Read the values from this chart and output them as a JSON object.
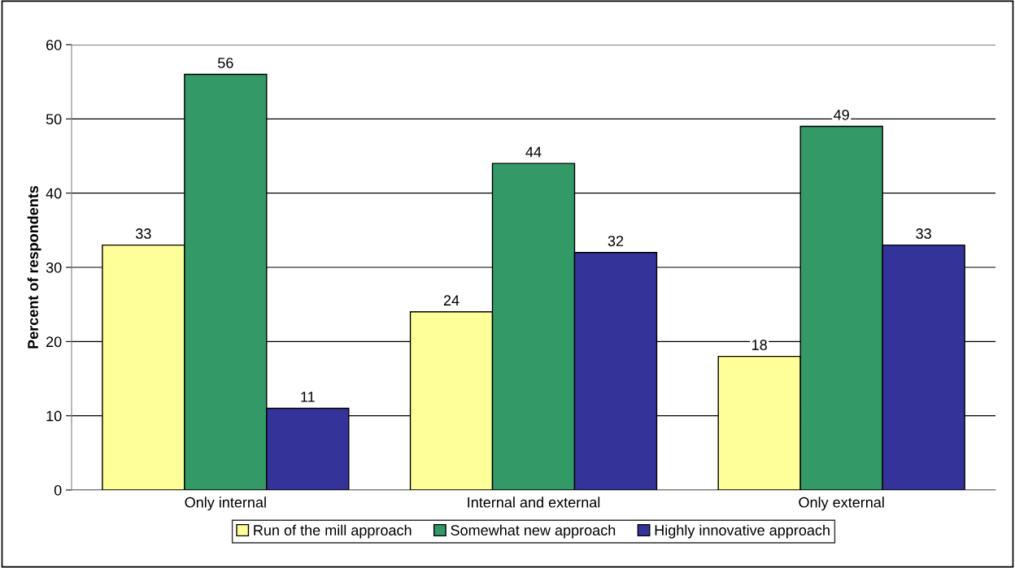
{
  "chart_data": {
    "type": "bar",
    "ylabel": "Percent of respondents",
    "categories": [
      "Only internal",
      "Internal and external",
      "Only external"
    ],
    "series": [
      {
        "name": "Run of the mill approach",
        "color": "#ffff99",
        "values": [
          33,
          24,
          18
        ]
      },
      {
        "name": "Somewhat new approach",
        "color": "#339966",
        "values": [
          56,
          44,
          49
        ]
      },
      {
        "name": "Highly innovative approach",
        "color": "#333399",
        "values": [
          11,
          32,
          33
        ]
      }
    ],
    "ylim": [
      0,
      60
    ],
    "yticks": [
      0,
      10,
      20,
      30,
      40,
      50,
      60
    ],
    "grid": "y",
    "legend": "bottom",
    "data_labels": true
  }
}
